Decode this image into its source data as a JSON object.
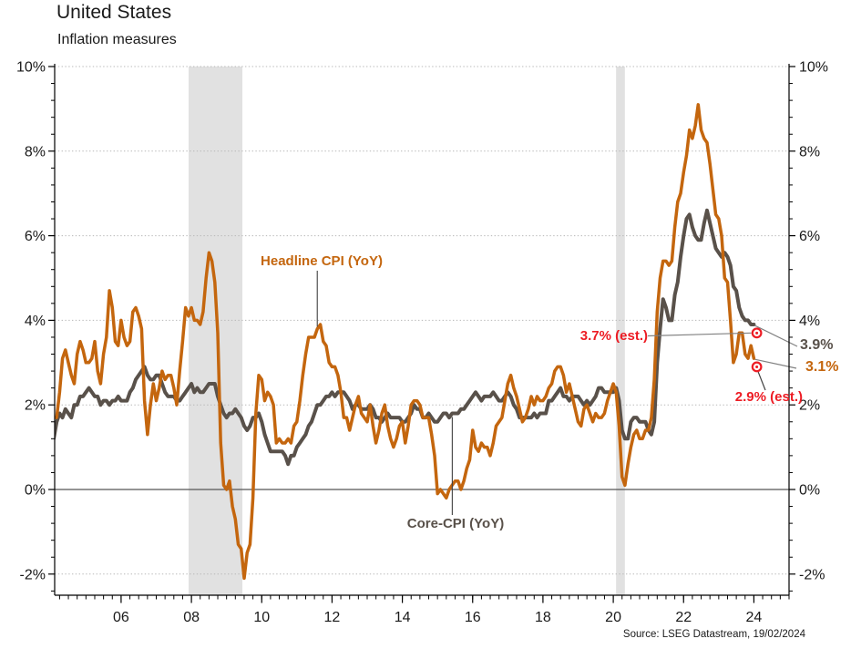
{
  "header": {
    "title": "United States",
    "subtitle": "Inflation measures"
  },
  "annotations": {
    "headline_label": "Headline CPI (YoY)",
    "core_label": "Core-CPI (YoY)",
    "est_core_label": "3.7% (est.)",
    "est_headline_label": "2.9% (est.)",
    "end_core_label": "3.9%",
    "end_headline_label": "3.1%"
  },
  "source": "Source: LSEG Datastream, 19/02/2024",
  "colors": {
    "headline": "#C4660E",
    "core": "#59514A",
    "estimate_red": "#ED1C24",
    "recession_band": "#E1E1E1",
    "gridline": "#B8B8B8",
    "zero_line": "#555555",
    "axis": "#000000",
    "text": "#1A1A1A",
    "leader": "#808080",
    "pointer": "#404040"
  },
  "chart_data": {
    "type": "line",
    "title": "United States",
    "subtitle": "Inflation measures",
    "x_axis": {
      "domain": [
        2004.11,
        2025.0
      ],
      "labeled_tick_years": [
        2006,
        2008,
        2010,
        2012,
        2014,
        2016,
        2018,
        2020,
        2022,
        2024
      ],
      "labels": [
        "06",
        "08",
        "10",
        "12",
        "14",
        "16",
        "18",
        "20",
        "22",
        "24"
      ],
      "minor_tick_interval_years": 0.25
    },
    "y_axis": {
      "ylim": [
        -2.5,
        10
      ],
      "major_ticks": [
        -2,
        0,
        2,
        4,
        6,
        8,
        10
      ],
      "labels": [
        "-2%",
        "0%",
        "2%",
        "4%",
        "6%",
        "8%",
        "10%"
      ],
      "minor_tick_interval": 0.4,
      "gridlines": "dotted",
      "zero_line": "solid",
      "mirrored_right": true
    },
    "recession_bands": [
      {
        "from": 2007.92,
        "to": 2009.45
      },
      {
        "from": 2020.08,
        "to": 2020.33
      }
    ],
    "series": [
      {
        "name": "Core-CPI (YoY)",
        "color": "#59514A",
        "start": "2004-01",
        "frequency": "monthly",
        "values": [
          1.1,
          1.2,
          1.6,
          1.8,
          1.7,
          1.9,
          1.8,
          1.7,
          2.0,
          2.0,
          2.2,
          2.2,
          2.3,
          2.4,
          2.3,
          2.2,
          2.2,
          2.0,
          2.1,
          2.1,
          2.0,
          2.1,
          2.1,
          2.2,
          2.1,
          2.1,
          2.1,
          2.3,
          2.4,
          2.6,
          2.7,
          2.8,
          2.9,
          2.7,
          2.6,
          2.6,
          2.7,
          2.7,
          2.5,
          2.3,
          2.2,
          2.2,
          2.2,
          2.1,
          2.1,
          2.2,
          2.3,
          2.4,
          2.5,
          2.3,
          2.4,
          2.3,
          2.3,
          2.4,
          2.5,
          2.5,
          2.5,
          2.2,
          2.0,
          1.8,
          1.7,
          1.8,
          1.8,
          1.9,
          1.8,
          1.7,
          1.5,
          1.4,
          1.5,
          1.7,
          1.7,
          1.8,
          1.6,
          1.3,
          1.1,
          0.9,
          0.9,
          0.9,
          0.9,
          0.9,
          0.8,
          0.6,
          0.8,
          0.8,
          1.0,
          1.1,
          1.2,
          1.3,
          1.5,
          1.6,
          1.8,
          2.0,
          2.0,
          2.1,
          2.2,
          2.2,
          2.3,
          2.2,
          2.3,
          2.3,
          2.3,
          2.2,
          2.1,
          1.9,
          2.0,
          2.0,
          1.9,
          1.9,
          1.9,
          2.0,
          1.9,
          1.7,
          1.7,
          1.6,
          1.7,
          1.8,
          1.7,
          1.7,
          1.7,
          1.7,
          1.6,
          1.6,
          1.7,
          1.8,
          2.0,
          1.9,
          1.9,
          1.7,
          1.7,
          1.8,
          1.7,
          1.6,
          1.6,
          1.7,
          1.8,
          1.8,
          1.7,
          1.8,
          1.8,
          1.8,
          1.9,
          1.9,
          2.0,
          2.1,
          2.2,
          2.3,
          2.2,
          2.1,
          2.2,
          2.2,
          2.2,
          2.3,
          2.2,
          2.1,
          2.1,
          2.2,
          2.3,
          2.2,
          2.0,
          1.9,
          1.7,
          1.7,
          1.7,
          1.7,
          1.7,
          1.8,
          1.7,
          1.8,
          1.8,
          1.8,
          2.1,
          2.1,
          2.2,
          2.3,
          2.4,
          2.2,
          2.2,
          2.1,
          2.2,
          2.2,
          2.2,
          2.1,
          2.0,
          2.1,
          2.0,
          2.1,
          2.2,
          2.4,
          2.4,
          2.3,
          2.3,
          2.3,
          2.3,
          2.4,
          2.1,
          1.4,
          1.2,
          1.2,
          1.6,
          1.7,
          1.7,
          1.6,
          1.6,
          1.6,
          1.4,
          1.3,
          1.6,
          3.0,
          3.8,
          4.5,
          4.3,
          4.0,
          4.0,
          4.6,
          4.9,
          5.5,
          6.0,
          6.4,
          6.5,
          6.2,
          6.0,
          5.9,
          5.9,
          6.3,
          6.6,
          6.3,
          6.0,
          5.7,
          5.6,
          5.5,
          5.6,
          5.5,
          5.3,
          4.8,
          4.7,
          4.3,
          4.1,
          4.0,
          4.0,
          3.9,
          3.9
        ]
      },
      {
        "name": "Headline CPI (YoY)",
        "color": "#C4660E",
        "start": "2004-01",
        "frequency": "monthly",
        "values": [
          1.9,
          1.7,
          1.7,
          2.3,
          3.1,
          3.3,
          3.0,
          2.7,
          2.5,
          3.2,
          3.5,
          3.3,
          3.0,
          3.0,
          3.1,
          3.5,
          2.8,
          2.5,
          3.2,
          3.6,
          4.7,
          4.3,
          3.5,
          3.4,
          4.0,
          3.6,
          3.4,
          3.5,
          4.2,
          4.3,
          4.1,
          3.8,
          2.1,
          1.3,
          2.0,
          2.5,
          2.1,
          2.4,
          2.8,
          2.6,
          2.7,
          2.7,
          2.4,
          2.0,
          2.8,
          3.5,
          4.3,
          4.1,
          4.3,
          4.0,
          4.0,
          3.9,
          4.2,
          5.0,
          5.6,
          5.4,
          4.9,
          3.7,
          1.1,
          0.1,
          0.0,
          0.2,
          -0.4,
          -0.7,
          -1.3,
          -1.4,
          -2.1,
          -1.5,
          -1.3,
          -0.2,
          1.8,
          2.7,
          2.6,
          2.1,
          2.3,
          2.2,
          2.0,
          1.1,
          1.2,
          1.1,
          1.1,
          1.2,
          1.1,
          1.5,
          1.6,
          2.1,
          2.7,
          3.2,
          3.6,
          3.6,
          3.6,
          3.8,
          3.9,
          3.5,
          3.4,
          3.0,
          2.9,
          2.9,
          2.7,
          2.3,
          1.7,
          1.7,
          1.4,
          1.7,
          2.0,
          2.2,
          1.8,
          1.7,
          1.6,
          2.0,
          1.5,
          1.1,
          1.4,
          1.8,
          2.0,
          1.5,
          1.2,
          1.0,
          1.2,
          1.5,
          1.6,
          1.1,
          1.5,
          2.0,
          2.1,
          2.1,
          2.0,
          1.7,
          1.7,
          1.7,
          1.3,
          0.8,
          -0.1,
          0.0,
          -0.1,
          -0.2,
          0.0,
          0.1,
          0.2,
          0.2,
          0.0,
          0.2,
          0.5,
          0.7,
          1.4,
          1.0,
          0.9,
          1.1,
          1.0,
          1.0,
          0.8,
          1.1,
          1.5,
          1.6,
          1.7,
          2.1,
          2.5,
          2.7,
          2.4,
          2.2,
          1.9,
          1.6,
          1.7,
          1.9,
          2.2,
          2.0,
          2.2,
          2.1,
          2.1,
          2.2,
          2.4,
          2.5,
          2.8,
          2.9,
          2.9,
          2.7,
          2.3,
          2.5,
          2.2,
          1.9,
          1.6,
          1.5,
          1.9,
          2.0,
          1.8,
          1.6,
          1.8,
          1.7,
          1.7,
          1.8,
          2.1,
          2.3,
          2.5,
          2.3,
          1.5,
          0.3,
          0.1,
          0.6,
          1.0,
          1.3,
          1.4,
          1.2,
          1.2,
          1.4,
          1.4,
          1.7,
          2.6,
          4.2,
          5.0,
          5.4,
          5.4,
          5.3,
          5.4,
          6.2,
          6.8,
          7.0,
          7.5,
          7.9,
          8.5,
          8.3,
          8.6,
          9.1,
          8.5,
          8.3,
          8.2,
          7.7,
          7.1,
          6.5,
          6.4,
          6.0,
          5.0,
          4.9,
          4.0,
          3.0,
          3.2,
          3.7,
          3.7,
          3.2,
          3.1,
          3.4,
          3.1
        ]
      }
    ],
    "estimates": [
      {
        "series": "Core-CPI (YoY)",
        "label": "3.7% (est.)",
        "value": 3.7,
        "t": 2024.083
      },
      {
        "series": "Headline CPI (YoY)",
        "label": "2.9% (est.)",
        "value": 2.9,
        "t": 2024.083
      }
    ],
    "end_value_labels": [
      {
        "series": "Core-CPI (YoY)",
        "text": "3.9%",
        "value": 3.9
      },
      {
        "series": "Headline CPI (YoY)",
        "text": "3.1%",
        "value": 3.1
      }
    ],
    "series_pointer_labels": [
      {
        "text": "Headline CPI (YoY)",
        "anchor_t": 2011.58,
        "anchor_value": 3.85
      },
      {
        "text": "Core-CPI (YoY)",
        "anchor_t": 2015.42,
        "anchor_value": 1.8
      }
    ],
    "source": "Source: LSEG Datastream, 19/02/2024"
  }
}
